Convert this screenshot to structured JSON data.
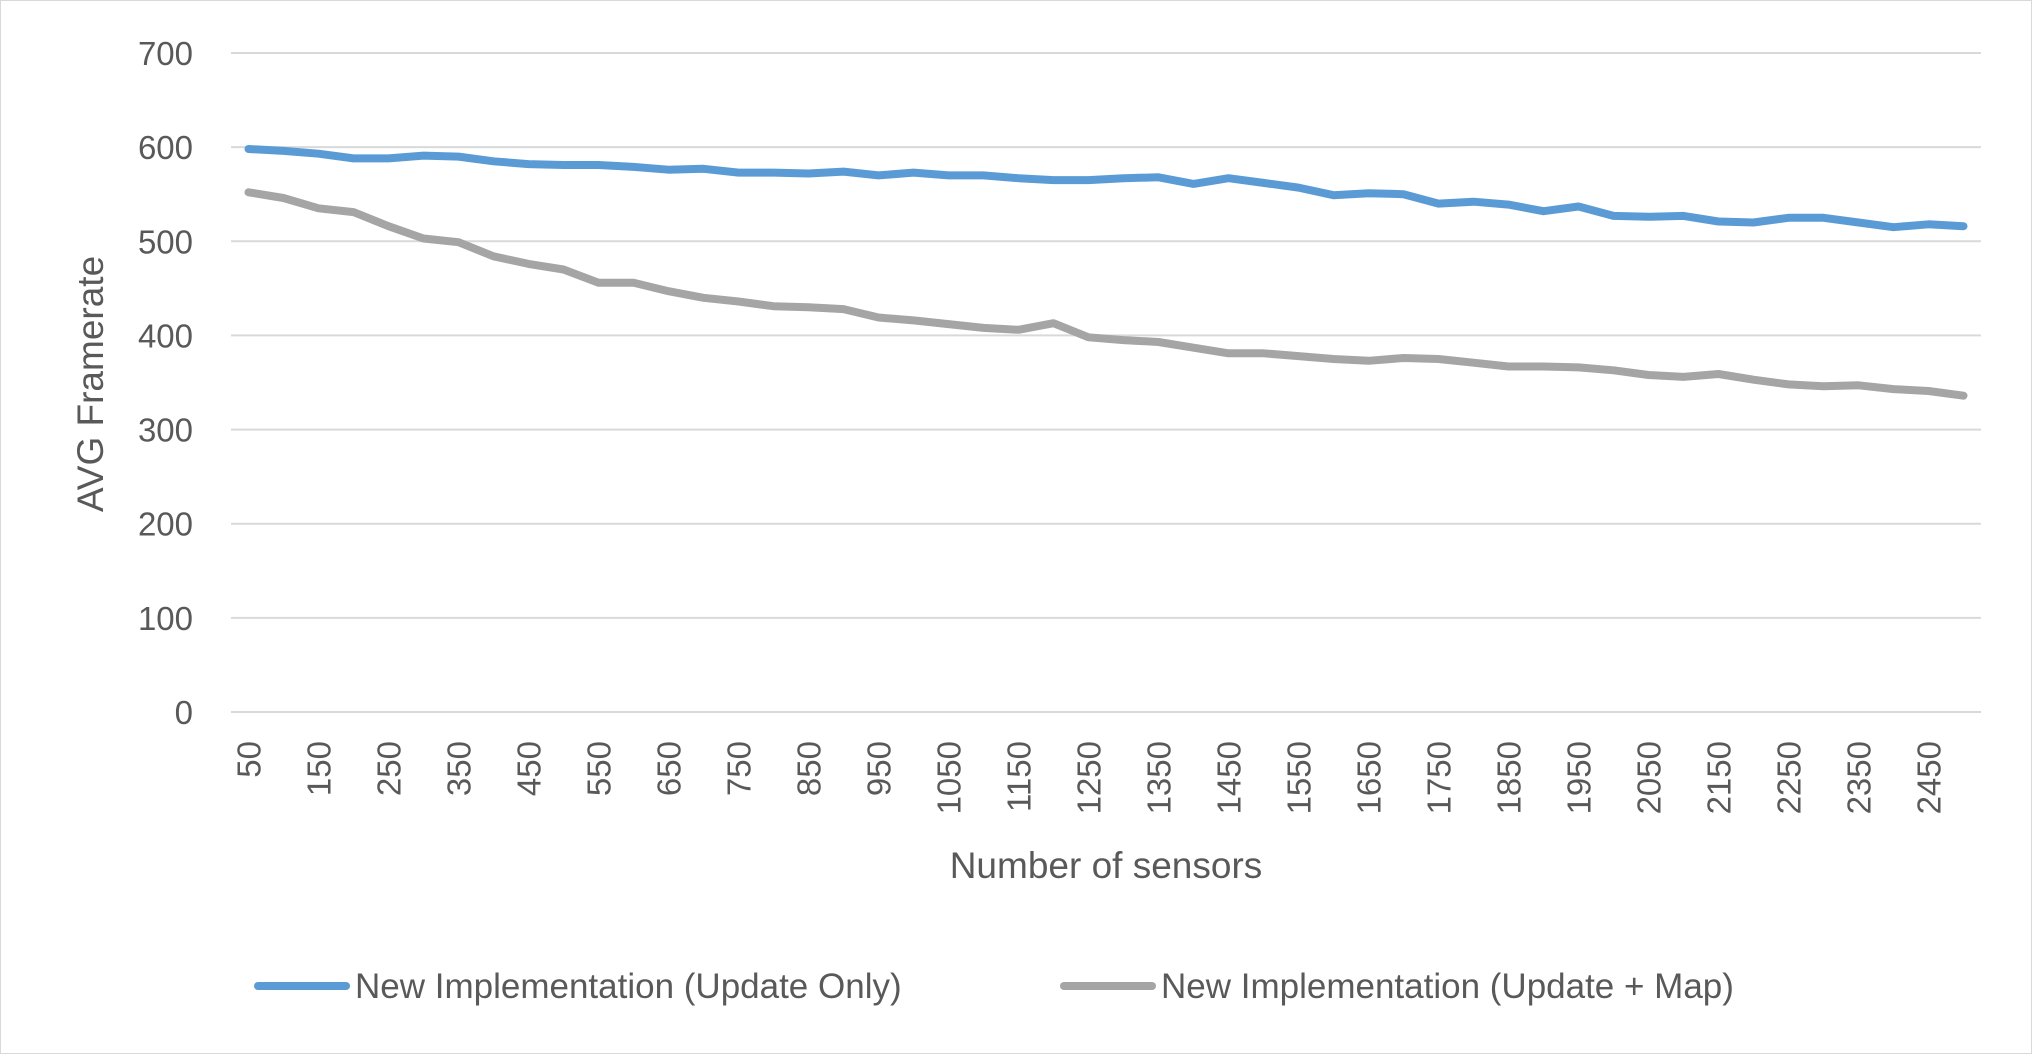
{
  "chart_data": {
    "type": "line",
    "title": "",
    "xlabel": "Number of sensors",
    "ylabel": "AVG Framerate",
    "ylim": [
      0,
      700
    ],
    "yticks": [
      0,
      100,
      200,
      300,
      400,
      500,
      600,
      700
    ],
    "grid": "horizontal",
    "legend": "bottom",
    "x": [
      50,
      100,
      150,
      200,
      250,
      300,
      350,
      400,
      450,
      500,
      550,
      600,
      650,
      700,
      750,
      800,
      850,
      900,
      950,
      1000,
      1050,
      1100,
      1150,
      1200,
      1250,
      1300,
      1350,
      1400,
      1450,
      1500,
      1550,
      1600,
      1650,
      1700,
      1750,
      1800,
      1850,
      1900,
      1950,
      2000,
      2050,
      2100,
      2150,
      2200,
      2250,
      2300,
      2350,
      2400,
      2450,
      2500
    ],
    "xtick_labels": [
      "50",
      "150",
      "250",
      "350",
      "450",
      "550",
      "650",
      "750",
      "850",
      "950",
      "1050",
      "1150",
      "1250",
      "1350",
      "1450",
      "1550",
      "1650",
      "1750",
      "1850",
      "1950",
      "2050",
      "2150",
      "2250",
      "2350",
      "2450"
    ],
    "series": [
      {
        "name": "New Implementation (Update Only)",
        "color": "#5b9bd5",
        "values": [
          598,
          596,
          593,
          588,
          588,
          591,
          590,
          585,
          582,
          581,
          581,
          579,
          576,
          577,
          573,
          573,
          572,
          574,
          570,
          573,
          570,
          570,
          567,
          565,
          565,
          567,
          568,
          561,
          567,
          562,
          557,
          549,
          551,
          550,
          540,
          542,
          539,
          532,
          537,
          527,
          526,
          527,
          521,
          520,
          525,
          525,
          520,
          515,
          518,
          516
        ]
      },
      {
        "name": "New Implementation (Update + Map)",
        "color": "#a5a5a5",
        "values": [
          552,
          546,
          535,
          531,
          516,
          503,
          499,
          484,
          476,
          470,
          456,
          456,
          447,
          440,
          436,
          431,
          430,
          428,
          419,
          416,
          412,
          408,
          406,
          413,
          398,
          395,
          393,
          387,
          381,
          381,
          378,
          375,
          373,
          376,
          375,
          371,
          367,
          367,
          366,
          363,
          358,
          356,
          359,
          353,
          348,
          346,
          347,
          343,
          341,
          336
        ]
      }
    ]
  }
}
